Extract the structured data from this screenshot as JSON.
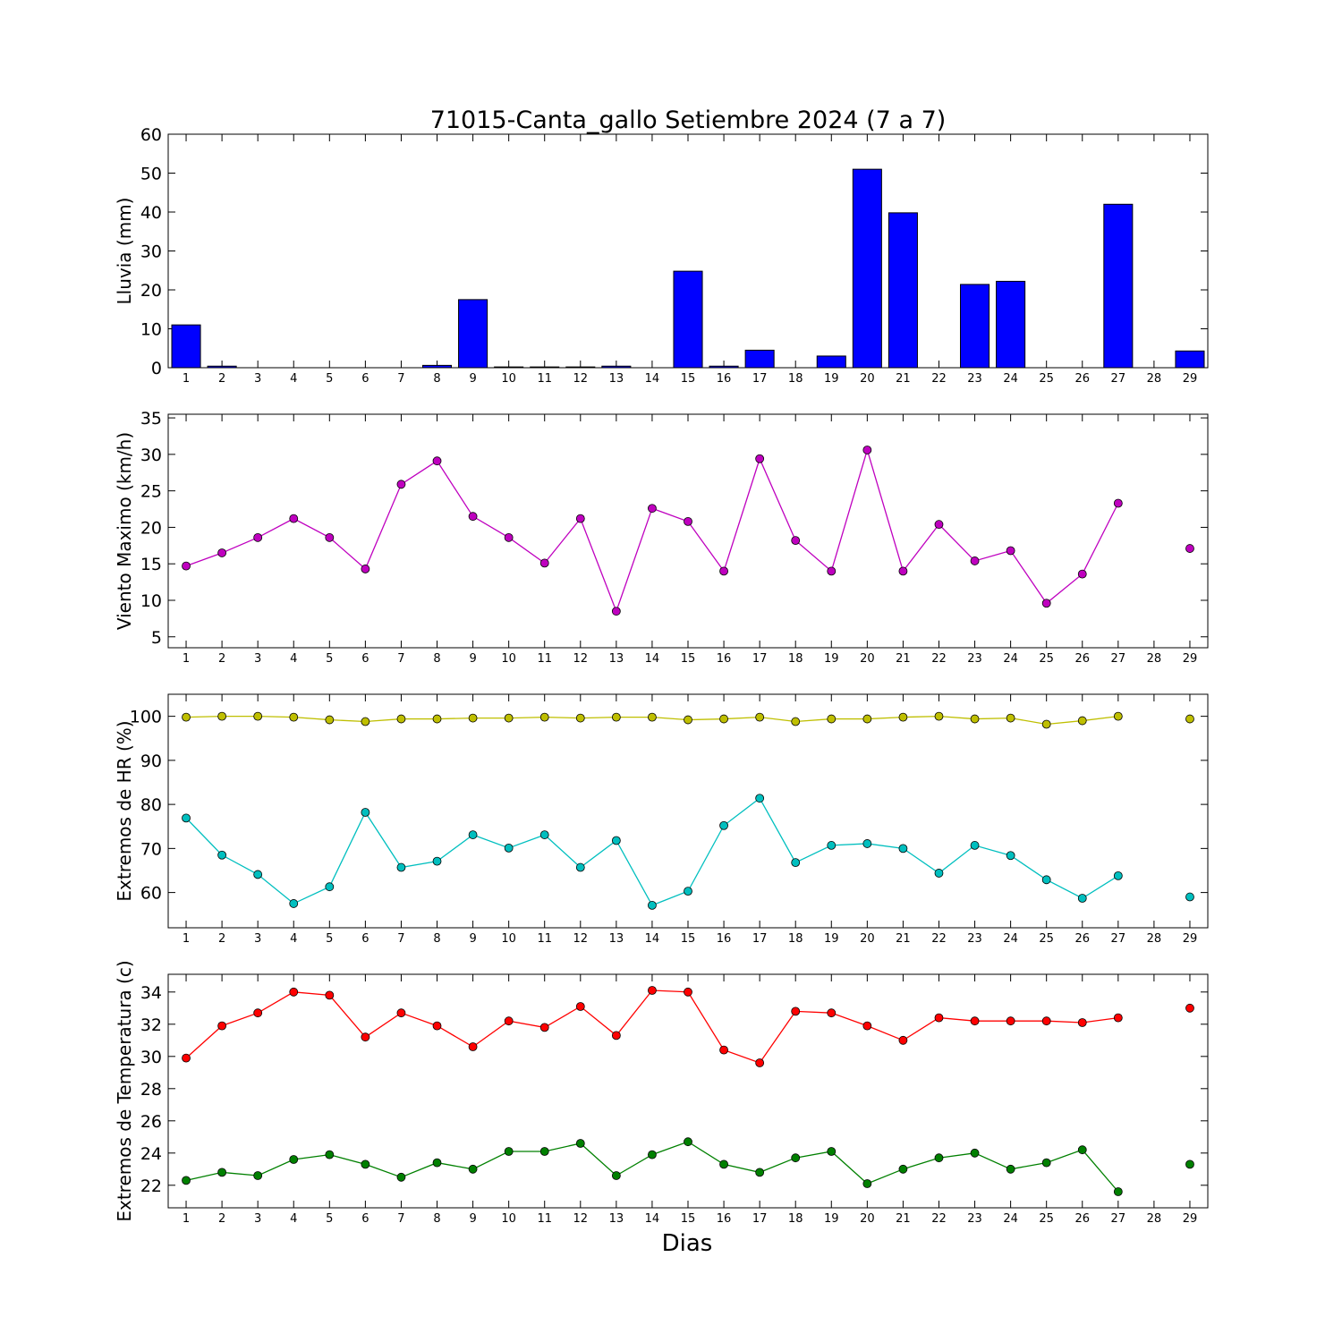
{
  "title": "71015-Canta_gallo Setiembre 2024  (7 a 7)",
  "xlabel": "Dias",
  "chart_data": [
    {
      "id": "rain",
      "type": "bar",
      "ylabel": "Lluvia (mm)",
      "ylim": [
        0,
        60
      ],
      "yticks": [
        0,
        10,
        20,
        30,
        40,
        50,
        60
      ],
      "x": [
        1,
        2,
        3,
        4,
        5,
        6,
        7,
        8,
        9,
        10,
        11,
        12,
        13,
        14,
        15,
        16,
        17,
        18,
        19,
        20,
        21,
        22,
        23,
        24,
        25,
        26,
        27,
        28,
        29
      ],
      "series": [
        {
          "values": [
            11.0,
            0.4,
            0,
            0,
            0,
            0,
            0,
            0.6,
            17.5,
            0.2,
            0.2,
            0.2,
            0.4,
            0,
            24.8,
            0.4,
            4.5,
            0,
            3.0,
            51.0,
            39.8,
            0,
            21.4,
            22.2,
            0,
            0,
            42.0,
            0,
            4.3
          ],
          "color": "#0000ff"
        }
      ]
    },
    {
      "id": "wind",
      "type": "line",
      "ylabel": "Viento Maximo (km/h)",
      "ylim": [
        3.5,
        35.5
      ],
      "yticks": [
        5,
        10,
        15,
        20,
        25,
        30,
        35
      ],
      "x": [
        1,
        2,
        3,
        4,
        5,
        6,
        7,
        8,
        9,
        10,
        11,
        12,
        13,
        14,
        15,
        16,
        17,
        18,
        19,
        20,
        21,
        22,
        23,
        24,
        25,
        26,
        27,
        28,
        29
      ],
      "series": [
        {
          "values": [
            14.7,
            16.5,
            18.6,
            21.2,
            18.6,
            14.3,
            25.9,
            29.1,
            21.5,
            18.6,
            15.1,
            21.2,
            8.5,
            22.6,
            20.8,
            14.0,
            29.4,
            18.2,
            14.0,
            30.6,
            14.0,
            20.4,
            15.4,
            16.8,
            9.6,
            13.6,
            23.3,
            null,
            17.1
          ],
          "color": "#bf00bf"
        }
      ]
    },
    {
      "id": "hr",
      "type": "line",
      "ylabel": "Extremos de HR (%)",
      "ylim": [
        52,
        105
      ],
      "yticks": [
        60,
        70,
        80,
        90,
        100
      ],
      "x": [
        1,
        2,
        3,
        4,
        5,
        6,
        7,
        8,
        9,
        10,
        11,
        12,
        13,
        14,
        15,
        16,
        17,
        18,
        19,
        20,
        21,
        22,
        23,
        24,
        25,
        26,
        27,
        28,
        29
      ],
      "series": [
        {
          "values": [
            99.8,
            100,
            100,
            99.8,
            99.2,
            98.8,
            99.4,
            99.4,
            99.6,
            99.6,
            99.8,
            99.6,
            99.8,
            99.8,
            99.2,
            99.4,
            99.8,
            98.8,
            99.4,
            99.4,
            99.8,
            100,
            99.4,
            99.6,
            98.2,
            99.0,
            100,
            null,
            99.4
          ],
          "color": "#bfbf00"
        },
        {
          "values": [
            76.9,
            68.5,
            64.1,
            57.5,
            61.3,
            78.2,
            65.7,
            67.1,
            73.1,
            70.1,
            73.1,
            65.7,
            71.8,
            57.1,
            60.3,
            75.2,
            81.4,
            66.8,
            70.7,
            71.1,
            70.0,
            64.4,
            70.7,
            68.4,
            62.9,
            58.7,
            63.8,
            null,
            59.0
          ],
          "color": "#00bfbf"
        }
      ]
    },
    {
      "id": "temp",
      "type": "line",
      "ylabel": "Extremos de Temperatura (c)",
      "ylim": [
        20.6,
        35.1
      ],
      "yticks": [
        22,
        24,
        26,
        28,
        30,
        32,
        34
      ],
      "x": [
        1,
        2,
        3,
        4,
        5,
        6,
        7,
        8,
        9,
        10,
        11,
        12,
        13,
        14,
        15,
        16,
        17,
        18,
        19,
        20,
        21,
        22,
        23,
        24,
        25,
        26,
        27,
        28,
        29
      ],
      "series": [
        {
          "values": [
            29.9,
            31.9,
            32.7,
            34.0,
            33.8,
            31.2,
            32.7,
            31.9,
            30.6,
            32.2,
            31.8,
            33.1,
            31.3,
            34.1,
            34.0,
            30.4,
            29.6,
            32.8,
            32.7,
            31.9,
            31.0,
            32.4,
            32.2,
            32.2,
            32.2,
            32.1,
            32.4,
            null,
            33.0
          ],
          "color": "#ff0000"
        },
        {
          "values": [
            22.3,
            22.8,
            22.6,
            23.6,
            23.9,
            23.3,
            22.5,
            23.4,
            23.0,
            24.1,
            24.1,
            24.6,
            22.6,
            23.9,
            24.7,
            23.3,
            22.8,
            23.7,
            24.1,
            22.1,
            23.0,
            23.7,
            24.0,
            23.0,
            23.4,
            24.2,
            21.6,
            null,
            23.3
          ],
          "color": "#008000"
        }
      ]
    }
  ]
}
